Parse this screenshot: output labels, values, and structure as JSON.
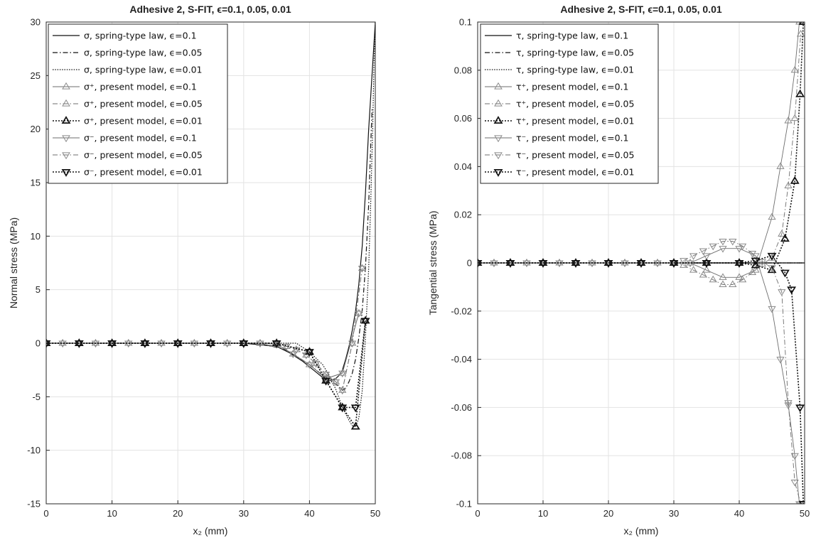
{
  "chart_data": [
    {
      "type": "line",
      "title": "Adhesive 2, S-FIT,  ϵ=0.1, 0.05, 0.01",
      "xlabel": "x₂ (mm)",
      "ylabel": "Normal stress (MPa)",
      "xlim": [
        0,
        50
      ],
      "ylim": [
        -15,
        30
      ],
      "xticks": [
        "0",
        "10",
        "20",
        "30",
        "40",
        "50"
      ],
      "yticks": [
        "-15",
        "-10",
        "-5",
        "0",
        "5",
        "10",
        "15",
        "20",
        "25",
        "30"
      ],
      "grid": true,
      "legend_position": "top-left",
      "series": [
        {
          "name": "σ, spring-type law, ϵ=0.1",
          "line": "solid",
          "marker": "none",
          "bold": false,
          "x": [
            0,
            30,
            35,
            37,
            39,
            40,
            41,
            42,
            43,
            44,
            44.5,
            45,
            45.5,
            46,
            46.5,
            47,
            47.5,
            48,
            48.5,
            49,
            50
          ],
          "y": [
            0,
            0,
            -0.3,
            -0.9,
            -1.7,
            -2.2,
            -2.7,
            -3.2,
            -3.5,
            -3.3,
            -3.0,
            -2.5,
            -1.5,
            -0.3,
            1.2,
            3.0,
            5.5,
            9.0,
            14.0,
            20.0,
            30.0
          ]
        },
        {
          "name": "σ, spring-type law, ϵ=0.05",
          "line": "dashdot",
          "marker": "none",
          "bold": false,
          "x": [
            0,
            32,
            36,
            38,
            40,
            42,
            43,
            44,
            45,
            45.5,
            46,
            46.5,
            47,
            47.5,
            48,
            48.5,
            49,
            49.5
          ],
          "y": [
            0,
            0,
            -0.5,
            -1.2,
            -2.0,
            -3.0,
            -3.5,
            -3.8,
            -4.4,
            -4.2,
            -3.6,
            -2.8,
            -1.5,
            0.5,
            3.0,
            7.0,
            13.0,
            22.0
          ]
        },
        {
          "name": "σ, spring-type law, ϵ=0.01",
          "line": "dot",
          "marker": "none",
          "bold": false,
          "x": [
            0,
            38,
            40,
            42,
            43,
            44,
            45,
            46,
            46.5,
            47,
            47.5,
            48,
            48.5,
            49,
            49.3,
            49.6,
            49.8,
            50
          ],
          "y": [
            0,
            0,
            -0.8,
            -2.0,
            -3.0,
            -4.3,
            -6.0,
            -7.2,
            -7.7,
            -7.8,
            -7.0,
            -4.5,
            0.5,
            7.0,
            13.0,
            20.0,
            26.0,
            30.0
          ]
        },
        {
          "name": "σ⁺, present model, ϵ=0.1",
          "line": "solid",
          "marker": "up",
          "bold": false,
          "x": [
            0,
            2.5,
            5,
            7.5,
            10,
            12.5,
            15,
            17.5,
            20,
            22.5,
            25,
            27.5,
            30,
            32.5,
            35,
            37.5,
            40,
            42.5,
            45,
            47.5
          ],
          "y": [
            0,
            0,
            0,
            0,
            0,
            0,
            0,
            0,
            0,
            0,
            0,
            0,
            0,
            0,
            -0.1,
            -1.0,
            -2.0,
            -3.3,
            -2.8,
            2.8
          ]
        },
        {
          "name": "σ⁺, present model, ϵ=0.05",
          "line": "dashdot",
          "marker": "up",
          "bold": false,
          "x": [
            0,
            2.5,
            5,
            7.5,
            10,
            12.5,
            15,
            17.5,
            20,
            22.5,
            25,
            27.5,
            30,
            32.5,
            35,
            36.5,
            38,
            39.5,
            41,
            42.5,
            44,
            45,
            46.5,
            48
          ],
          "y": [
            0,
            0,
            0,
            0,
            0,
            0,
            0,
            0,
            0,
            0,
            0,
            0,
            0,
            0,
            -0.1,
            -0.3,
            -0.6,
            -1.1,
            -1.9,
            -2.9,
            -3.6,
            -4.4,
            0.0,
            7.0
          ]
        },
        {
          "name": "σ⁺, present model, ϵ=0.01",
          "line": "dot",
          "marker": "up",
          "bold": true,
          "x": [
            0,
            5,
            10,
            15,
            20,
            25,
            30,
            35,
            40,
            42.5,
            45,
            47,
            48.5
          ],
          "y": [
            0,
            0,
            0,
            0,
            0,
            0,
            0,
            0,
            -0.8,
            -3.5,
            -6.0,
            -7.8,
            2.1
          ]
        },
        {
          "name": "σ⁻, present model, ϵ=0.1",
          "line": "solid",
          "marker": "down",
          "bold": false,
          "x": [
            0,
            2.5,
            5,
            7.5,
            10,
            12.5,
            15,
            17.5,
            20,
            22.5,
            25,
            27.5,
            30,
            32.5,
            35,
            37.5,
            40,
            42.5,
            45,
            47.5
          ],
          "y": [
            0,
            0,
            0,
            0,
            0,
            0,
            0,
            0,
            0,
            0,
            0,
            0,
            0,
            0,
            -0.1,
            -1.0,
            -2.0,
            -3.3,
            -2.8,
            2.8
          ]
        },
        {
          "name": "σ⁻, present model, ϵ=0.05",
          "line": "dashdot",
          "marker": "down",
          "bold": false,
          "x": [
            0,
            2.5,
            5,
            7.5,
            10,
            12.5,
            15,
            17.5,
            20,
            22.5,
            25,
            27.5,
            30,
            32.5,
            35,
            36.5,
            38,
            39.5,
            41,
            42.5,
            44,
            45,
            46.5,
            48
          ],
          "y": [
            0,
            0,
            0,
            0,
            0,
            0,
            0,
            0,
            0,
            0,
            0,
            0,
            0,
            0,
            -0.1,
            -0.3,
            -0.6,
            -1.1,
            -1.9,
            -2.9,
            -3.6,
            -4.4,
            0.0,
            7.0
          ]
        },
        {
          "name": "σ⁻, present model, ϵ=0.01",
          "line": "dot",
          "marker": "down",
          "bold": true,
          "x": [
            0,
            5,
            10,
            15,
            20,
            25,
            30,
            35,
            40,
            42.5,
            45,
            47,
            48.5
          ],
          "y": [
            0,
            0,
            0,
            0,
            0,
            0,
            0,
            0,
            -0.8,
            -3.5,
            -6.0,
            -6.0,
            2.1
          ]
        }
      ]
    },
    {
      "type": "line",
      "title": "Adhesive 2, S-FIT,  ϵ=0.1, 0.05, 0.01",
      "xlabel": "x₂ (mm)",
      "ylabel": "Tangential stress (MPa)",
      "xlim": [
        0,
        50
      ],
      "ylim": [
        -0.1,
        0.1
      ],
      "xticks": [
        "0",
        "10",
        "20",
        "30",
        "40",
        "50"
      ],
      "yticks": [
        "-0.1",
        "-0.08",
        "-0.06",
        "-0.04",
        "-0.02",
        "0",
        "0.02",
        "0.04",
        "0.06",
        "0.08",
        "0.1"
      ],
      "grid": true,
      "legend_position": "top-left",
      "series": [
        {
          "name": "τ, spring-type law, ϵ=0.1",
          "line": "solid",
          "marker": "none",
          "bold": false,
          "x": [
            0,
            50
          ],
          "y": [
            0,
            0
          ]
        },
        {
          "name": "τ, spring-type law, ϵ=0.05",
          "line": "dashdot",
          "marker": "none",
          "bold": false,
          "x": [
            0,
            50
          ],
          "y": [
            0,
            0
          ]
        },
        {
          "name": "τ, spring-type law, ϵ=0.01",
          "line": "dot",
          "marker": "none",
          "bold": false,
          "x": [
            0,
            50
          ],
          "y": [
            0,
            0
          ]
        },
        {
          "name": "τ⁺, present model, ϵ=0.1",
          "line": "solid",
          "marker": "up",
          "bold": false,
          "x": [
            0,
            2.5,
            5,
            7.5,
            10,
            12.5,
            15,
            17.5,
            20,
            22.5,
            25,
            27.5,
            30,
            32.5,
            35,
            37.5,
            40,
            42.5,
            45,
            46.3,
            47.5,
            48.5,
            49.2
          ],
          "y": [
            0,
            0,
            0,
            0,
            0,
            0,
            0,
            0,
            0,
            0,
            0,
            0,
            0,
            0.0,
            -0.003,
            -0.006,
            -0.006,
            -0.003,
            0.019,
            0.04,
            0.059,
            0.08,
            0.1
          ]
        },
        {
          "name": "τ⁺, present model, ϵ=0.05",
          "line": "dashdot",
          "marker": "up",
          "bold": false,
          "x": [
            0,
            2.5,
            5,
            7.5,
            10,
            12.5,
            15,
            17.5,
            20,
            22.5,
            25,
            27.5,
            30,
            31.5,
            33,
            34.5,
            36,
            37.5,
            39,
            40.5,
            42,
            43.5,
            45,
            46.5,
            47.5,
            48.5,
            49.4
          ],
          "y": [
            0,
            0,
            0,
            0,
            0,
            0,
            0,
            0,
            0,
            0,
            0,
            0,
            0,
            -0.001,
            -0.003,
            -0.005,
            -0.007,
            -0.009,
            -0.009,
            -0.007,
            -0.004,
            -0.0005,
            0.002,
            0.012,
            0.032,
            0.06,
            0.095
          ]
        },
        {
          "name": "τ⁺, present model, ϵ=0.01",
          "line": "dot",
          "marker": "up",
          "bold": true,
          "x": [
            0,
            5,
            10,
            15,
            20,
            25,
            30,
            35,
            40,
            42.5,
            45,
            47,
            48.5,
            49.3,
            49.8
          ],
          "y": [
            0,
            0,
            0,
            0,
            0,
            0,
            0,
            0,
            0,
            -0.001,
            -0.003,
            0.01,
            0.034,
            0.07,
            0.1
          ]
        },
        {
          "name": "τ⁻, present model, ϵ=0.1",
          "line": "solid",
          "marker": "down",
          "bold": false,
          "x": [
            0,
            2.5,
            5,
            7.5,
            10,
            12.5,
            15,
            17.5,
            20,
            22.5,
            25,
            27.5,
            30,
            32.5,
            35,
            37.5,
            40,
            42.5,
            45,
            46.3,
            47.5,
            48.5,
            49.2
          ],
          "y": [
            0,
            0,
            0,
            0,
            0,
            0,
            0,
            0,
            0,
            0,
            0,
            0,
            0,
            0.0,
            0.003,
            0.006,
            0.006,
            0.003,
            -0.019,
            -0.04,
            -0.059,
            -0.08,
            -0.1
          ]
        },
        {
          "name": "τ⁻, present model, ϵ=0.05",
          "line": "dashdot",
          "marker": "down",
          "bold": false,
          "x": [
            0,
            2.5,
            5,
            7.5,
            10,
            12.5,
            15,
            17.5,
            20,
            22.5,
            25,
            27.5,
            30,
            31.5,
            33,
            34.5,
            36,
            37.5,
            39,
            40.5,
            42,
            43.5,
            45,
            46.5,
            47.5,
            48.5,
            49.4
          ],
          "y": [
            0,
            0,
            0,
            0,
            0,
            0,
            0,
            0,
            0,
            0,
            0,
            0,
            0,
            0.001,
            0.003,
            0.005,
            0.007,
            0.009,
            0.009,
            0.007,
            0.004,
            0.0005,
            -0.002,
            -0.012,
            -0.058,
            -0.091,
            -0.1
          ]
        },
        {
          "name": "τ⁻, present model, ϵ=0.01",
          "line": "dot",
          "marker": "down",
          "bold": true,
          "x": [
            0,
            5,
            10,
            15,
            20,
            25,
            30,
            35,
            40,
            42.5,
            45,
            47,
            48,
            49.3,
            49.8
          ],
          "y": [
            0,
            0,
            0,
            0,
            0,
            0,
            0,
            0,
            0,
            0.001,
            0.003,
            -0.004,
            -0.011,
            -0.06,
            -0.1
          ]
        }
      ]
    }
  ]
}
